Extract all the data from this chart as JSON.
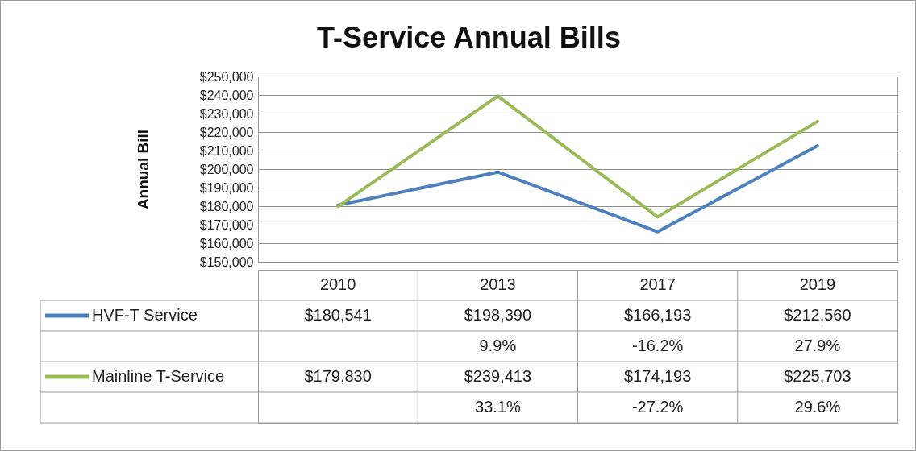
{
  "chart_data": {
    "type": "line",
    "title": "T-Service Annual Bills",
    "ylabel": "Annual Bill",
    "categories": [
      "2010",
      "2013",
      "2017",
      "2019"
    ],
    "series": [
      {
        "name": "HVF-T Service",
        "color": "#4f81bd",
        "values": [
          180541,
          198390,
          166193,
          212560
        ],
        "value_labels": [
          "$180,541",
          "$198,390",
          "$166,193",
          "$212,560"
        ]
      },
      {
        "name": "Mainline T-Service",
        "color": "#9bbb59",
        "values": [
          179830,
          239413,
          174193,
          225703
        ],
        "value_labels": [
          "$179,830",
          "$239,413",
          "$174,193",
          "$225,703"
        ]
      }
    ],
    "ylim": [
      150000,
      250000
    ],
    "yticks": [
      {
        "value": 150000,
        "label": "$150,000"
      },
      {
        "value": 160000,
        "label": "$160,000"
      },
      {
        "value": 170000,
        "label": "$170,000"
      },
      {
        "value": 180000,
        "label": "$180,000"
      },
      {
        "value": 190000,
        "label": "$190,000"
      },
      {
        "value": 200000,
        "label": "$200,000"
      },
      {
        "value": 210000,
        "label": "$210,000"
      },
      {
        "value": 220000,
        "label": "$220,000"
      },
      {
        "value": 230000,
        "label": "$230,000"
      },
      {
        "value": 240000,
        "label": "$240,000"
      },
      {
        "value": 250000,
        "label": "$250,000"
      }
    ],
    "annotations": [
      "9.9%",
      "-16.2%",
      "27.9%",
      "33.1%",
      "-27.2%",
      "29.6%"
    ],
    "grid": "y",
    "legend": "bottom left",
    "marker": "none",
    "line_style": "solid"
  }
}
